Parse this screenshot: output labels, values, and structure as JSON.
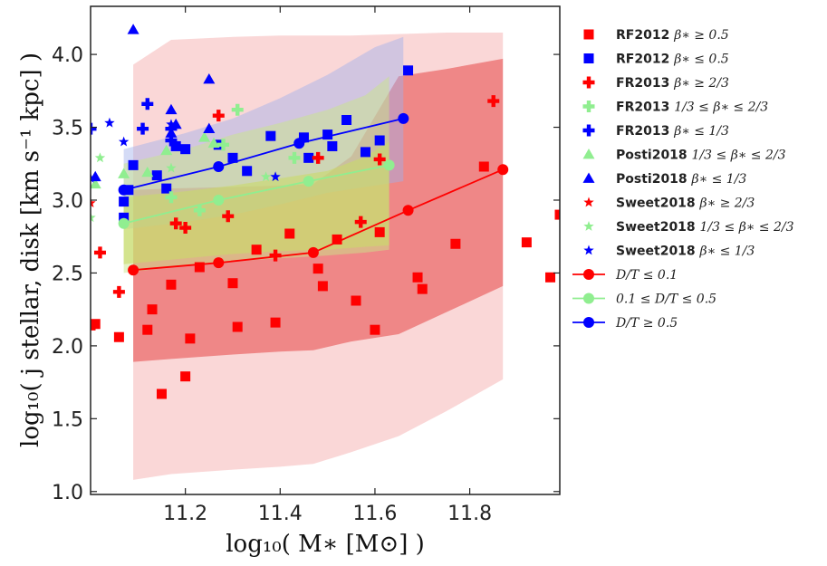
{
  "chart_data": {
    "type": "scatter",
    "xlabel": "log₁₀( M∗ [M⊙] )",
    "ylabel": "log₁₀( j stellar, disk [km s⁻¹ kpc] )",
    "xlim": [
      11.0,
      11.99
    ],
    "ylim": [
      0.98,
      4.33
    ],
    "x_ticks": [
      11.2,
      11.4,
      11.6,
      11.8
    ],
    "x_tick_labels": [
      "11.2",
      "11.4",
      "11.6",
      "11.8"
    ],
    "y_ticks": [
      1.0,
      1.5,
      2.0,
      2.5,
      3.0,
      3.5,
      4.0
    ],
    "y_tick_labels": [
      "1.0",
      "1.5",
      "2.0",
      "2.5",
      "3.0",
      "3.5",
      "4.0"
    ],
    "bands": [
      {
        "name": "red-outer",
        "color": "#f4a6a6",
        "opacity": 0.45,
        "x": [
          11.09,
          11.17,
          11.3,
          11.4,
          11.47,
          11.55,
          11.65,
          11.75,
          11.87
        ],
        "upper": [
          3.93,
          4.1,
          4.12,
          4.13,
          4.13,
          4.13,
          4.14,
          4.15,
          4.15
        ],
        "lower": [
          1.08,
          1.12,
          1.15,
          1.17,
          1.19,
          1.27,
          1.38,
          1.55,
          1.77
        ]
      },
      {
        "name": "red-inner",
        "color": "#e64545",
        "opacity": 0.55,
        "x": [
          11.09,
          11.17,
          11.3,
          11.4,
          11.47,
          11.55,
          11.65,
          11.75,
          11.87
        ],
        "upper": [
          3.07,
          3.08,
          3.09,
          3.1,
          3.11,
          3.3,
          3.85,
          3.9,
          3.97
        ],
        "lower": [
          1.89,
          1.91,
          1.94,
          1.96,
          1.97,
          2.03,
          2.08,
          2.23,
          2.41
        ]
      },
      {
        "name": "blue-outer",
        "color": "#9fb0ea",
        "opacity": 0.45,
        "x": [
          11.07,
          11.2,
          11.3,
          11.4,
          11.5,
          11.6,
          11.66
        ],
        "upper": [
          3.35,
          3.46,
          3.56,
          3.7,
          3.86,
          4.05,
          4.12
        ],
        "lower": [
          2.8,
          2.85,
          2.9,
          2.97,
          3.05,
          3.1,
          3.13
        ]
      },
      {
        "name": "green-inner",
        "color": "#c8cf4a",
        "opacity": 0.6,
        "x": [
          11.07,
          11.2,
          11.3,
          11.4,
          11.5,
          11.58,
          11.63
        ],
        "upper": [
          3.02,
          3.06,
          3.1,
          3.15,
          3.2,
          3.3,
          3.4
        ],
        "lower": [
          2.56,
          2.6,
          2.63,
          2.65,
          2.66,
          2.68,
          2.69
        ]
      },
      {
        "name": "green-outer",
        "color": "#c9e68a",
        "opacity": 0.5,
        "x": [
          11.07,
          11.2,
          11.3,
          11.4,
          11.5,
          11.58,
          11.63
        ],
        "upper": [
          3.25,
          3.35,
          3.45,
          3.53,
          3.62,
          3.72,
          3.85
        ],
        "lower": [
          2.5,
          2.55,
          2.58,
          2.6,
          2.62,
          2.64,
          2.66
        ]
      }
    ],
    "series": [
      {
        "name": "RF2012",
        "cond": "β∗ ≥ 0.5",
        "marker": "square",
        "color": "#ff0000",
        "points": [
          [
            11.01,
            2.15
          ],
          [
            11.06,
            2.06
          ],
          [
            11.12,
            2.11
          ],
          [
            11.13,
            2.25
          ],
          [
            11.15,
            1.67
          ],
          [
            11.17,
            2.42
          ],
          [
            11.2,
            1.79
          ],
          [
            11.21,
            2.05
          ],
          [
            11.23,
            2.54
          ],
          [
            11.3,
            2.43
          ],
          [
            11.31,
            2.13
          ],
          [
            11.35,
            2.66
          ],
          [
            11.39,
            2.16
          ],
          [
            11.42,
            2.77
          ],
          [
            11.48,
            2.53
          ],
          [
            11.49,
            2.41
          ],
          [
            11.52,
            2.73
          ],
          [
            11.56,
            2.31
          ],
          [
            11.6,
            2.11
          ],
          [
            11.61,
            2.78
          ],
          [
            11.69,
            2.47
          ],
          [
            11.7,
            2.39
          ],
          [
            11.77,
            2.7
          ],
          [
            11.83,
            3.23
          ],
          [
            11.92,
            2.71
          ],
          [
            11.97,
            2.47
          ],
          [
            11.99,
            2.9
          ],
          [
            11.0,
            2.14
          ]
        ]
      },
      {
        "name": "RF2012",
        "cond": "β∗ ≤ 0.5",
        "marker": "square",
        "color": "#0000ff",
        "points": [
          [
            11.07,
            2.99
          ],
          [
            11.07,
            2.88
          ],
          [
            11.09,
            3.24
          ],
          [
            11.14,
            3.17
          ],
          [
            11.16,
            3.08
          ],
          [
            11.18,
            3.37
          ],
          [
            11.2,
            3.35
          ],
          [
            11.27,
            3.38
          ],
          [
            11.3,
            3.29
          ],
          [
            11.33,
            3.2
          ],
          [
            11.38,
            3.44
          ],
          [
            11.45,
            3.43
          ],
          [
            11.46,
            3.29
          ],
          [
            11.5,
            3.45
          ],
          [
            11.51,
            3.37
          ],
          [
            11.54,
            3.55
          ],
          [
            11.58,
            3.33
          ],
          [
            11.61,
            3.41
          ],
          [
            11.67,
            3.89
          ],
          [
            11.08,
            3.07
          ]
        ]
      },
      {
        "name": "FR2013",
        "cond": "β∗ ≥ 2/3",
        "marker": "plus",
        "color": "#ff0000",
        "points": [
          [
            11.02,
            2.64
          ],
          [
            11.06,
            2.37
          ],
          [
            11.18,
            2.84
          ],
          [
            11.2,
            2.81
          ],
          [
            11.27,
            3.58
          ],
          [
            11.29,
            2.89
          ],
          [
            11.39,
            2.62
          ],
          [
            11.48,
            3.29
          ],
          [
            11.57,
            2.85
          ],
          [
            11.61,
            3.28
          ],
          [
            11.85,
            3.68
          ]
        ]
      },
      {
        "name": "FR2013",
        "cond": "1/3 ≤ β∗ ≤ 2/3",
        "marker": "plus",
        "color": "#90ee90",
        "points": [
          [
            11.17,
            3.02
          ],
          [
            11.23,
            2.93
          ],
          [
            11.28,
            3.38
          ],
          [
            11.31,
            3.62
          ],
          [
            11.43,
            3.29
          ]
        ]
      },
      {
        "name": "FR2013",
        "cond": "β∗ ≤ 1/3",
        "marker": "plus",
        "color": "#0000ff",
        "points": [
          [
            11.0,
            3.49
          ],
          [
            11.11,
            3.49
          ],
          [
            11.12,
            3.66
          ],
          [
            11.17,
            3.49
          ],
          [
            11.17,
            3.41
          ]
        ]
      },
      {
        "name": "Posti2018",
        "cond": "1/3 ≤ β∗ ≤ 2/3",
        "marker": "triangle",
        "color": "#90ee90",
        "points": [
          [
            11.01,
            3.11
          ],
          [
            11.07,
            3.18
          ],
          [
            11.12,
            3.19
          ],
          [
            11.16,
            3.34
          ],
          [
            11.24,
            3.43
          ],
          [
            11.26,
            3.39
          ]
        ]
      },
      {
        "name": "Posti2018",
        "cond": "β∗ ≤ 1/3",
        "marker": "triangle",
        "color": "#0000ff",
        "points": [
          [
            11.09,
            4.17
          ],
          [
            11.17,
            3.62
          ],
          [
            11.18,
            3.52
          ],
          [
            11.25,
            3.83
          ],
          [
            11.25,
            3.49
          ],
          [
            11.17,
            3.46
          ],
          [
            11.01,
            3.16
          ]
        ]
      },
      {
        "name": "Sweet2018",
        "cond": "β∗ ≥ 2/3",
        "marker": "star",
        "color": "#ff0000",
        "points": [
          [
            11.0,
            2.98
          ]
        ]
      },
      {
        "name": "Sweet2018",
        "cond": "1/3 ≤ β∗ ≤ 2/3",
        "marker": "star",
        "color": "#90ee90",
        "points": [
          [
            11.0,
            2.88
          ],
          [
            11.02,
            3.29
          ],
          [
            11.37,
            3.16
          ],
          [
            11.17,
            3.22
          ]
        ]
      },
      {
        "name": "Sweet2018",
        "cond": "β∗ ≤ 1/3",
        "marker": "star",
        "color": "#0000ff",
        "points": [
          [
            11.04,
            3.53
          ],
          [
            11.07,
            3.4
          ],
          [
            11.17,
            3.52
          ],
          [
            11.39,
            3.16
          ],
          [
            11.0,
            3.15
          ]
        ]
      }
    ],
    "lines": [
      {
        "name": "D/T ≤ 0.1",
        "color": "#ff0000",
        "x": [
          11.09,
          11.27,
          11.47,
          11.67,
          11.87
        ],
        "y": [
          2.52,
          2.57,
          2.64,
          2.93,
          3.21
        ]
      },
      {
        "name": "0.1 ≤ D/T ≤ 0.5",
        "color": "#90ee90",
        "x": [
          11.07,
          11.27,
          11.46,
          11.63
        ],
        "y": [
          2.84,
          3.0,
          3.13,
          3.24
        ]
      },
      {
        "name": "D/T ≥ 0.5",
        "color": "#0000ff",
        "x": [
          11.07,
          11.27,
          11.44,
          11.66
        ],
        "y": [
          3.07,
          3.23,
          3.39,
          3.56
        ]
      }
    ],
    "legend": {
      "placement": "outside-right",
      "entries": [
        {
          "label": "RF2012",
          "cond": "β∗ ≥ 0.5",
          "marker": "square",
          "color": "#ff0000"
        },
        {
          "label": "RF2012",
          "cond": "β∗ ≤ 0.5",
          "marker": "square",
          "color": "#0000ff"
        },
        {
          "label": "FR2013",
          "cond": "β∗ ≥ 2/3",
          "marker": "plus",
          "color": "#ff0000"
        },
        {
          "label": "FR2013",
          "cond": "1/3 ≤ β∗ ≤ 2/3",
          "marker": "plus",
          "color": "#90ee90"
        },
        {
          "label": "FR2013",
          "cond": "β∗ ≤ 1/3",
          "marker": "plus",
          "color": "#0000ff"
        },
        {
          "label": "Posti2018",
          "cond": "1/3 ≤ β∗ ≤ 2/3",
          "marker": "triangle",
          "color": "#90ee90"
        },
        {
          "label": "Posti2018",
          "cond": "β∗ ≤ 1/3",
          "marker": "triangle",
          "color": "#0000ff"
        },
        {
          "label": "Sweet2018",
          "cond": "β∗ ≥ 2/3",
          "marker": "star",
          "color": "#ff0000"
        },
        {
          "label": "Sweet2018",
          "cond": "1/3 ≤ β∗ ≤ 2/3",
          "marker": "star",
          "color": "#90ee90"
        },
        {
          "label": "Sweet2018",
          "cond": "β∗ ≤ 1/3",
          "marker": "star",
          "color": "#0000ff"
        },
        {
          "label": "",
          "cond": "D/T ≤ 0.1",
          "marker": "line",
          "color": "#ff0000"
        },
        {
          "label": "",
          "cond": "0.1 ≤ D/T ≤ 0.5",
          "marker": "line",
          "color": "#90ee90"
        },
        {
          "label": "",
          "cond": "D/T ≥ 0.5",
          "marker": "line",
          "color": "#0000ff"
        }
      ]
    }
  }
}
